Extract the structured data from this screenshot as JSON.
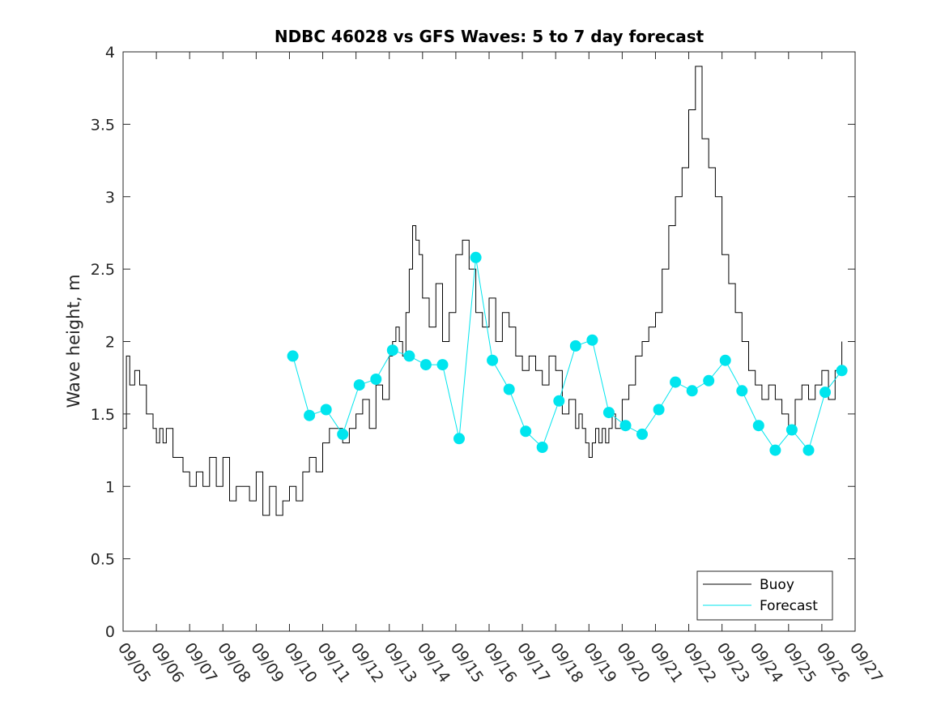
{
  "chart_data": {
    "type": "line",
    "title": "NDBC 46028 vs GFS Waves: 5 to 7 day forecast",
    "xlabel": "",
    "ylabel": "Wave height, m",
    "xlim": [
      0,
      22
    ],
    "ylim": [
      0,
      4
    ],
    "grid": false,
    "legend_position": "bottom-right",
    "x_tick_labels": [
      "09/05",
      "09/06",
      "09/07",
      "09/08",
      "09/09",
      "09/10",
      "09/11",
      "09/12",
      "09/13",
      "09/14",
      "09/15",
      "09/16",
      "09/17",
      "09/18",
      "09/19",
      "09/20",
      "09/21",
      "09/22",
      "09/23",
      "09/24",
      "09/25",
      "09/26",
      "09/27"
    ],
    "y_ticks": [
      0,
      0.5,
      1,
      1.5,
      2,
      2.5,
      3,
      3.5,
      4
    ],
    "y_tick_labels": [
      "0",
      "0.5",
      "1",
      "1.5",
      "2",
      "2.5",
      "3",
      "3.5",
      "4"
    ],
    "colors": {
      "buoy": "#000000",
      "forecast": "#00e5ee"
    },
    "series": [
      {
        "name": "Buoy",
        "x": [
          0,
          0.1,
          0.2,
          0.35,
          0.5,
          0.6,
          0.7,
          0.8,
          0.9,
          1.0,
          1.1,
          1.2,
          1.3,
          1.5,
          1.6,
          1.8,
          2.0,
          2.2,
          2.4,
          2.6,
          2.8,
          3.0,
          3.2,
          3.4,
          3.6,
          3.8,
          4.0,
          4.2,
          4.4,
          4.6,
          4.8,
          5.0,
          5.2,
          5.4,
          5.6,
          5.8,
          6.0,
          6.2,
          6.4,
          6.6,
          6.8,
          7.0,
          7.2,
          7.4,
          7.6,
          7.8,
          8.0,
          8.1,
          8.2,
          8.3,
          8.4,
          8.5,
          8.6,
          8.7,
          8.8,
          8.9,
          9.0,
          9.2,
          9.4,
          9.6,
          9.8,
          10.0,
          10.2,
          10.4,
          10.6,
          10.8,
          11.0,
          11.2,
          11.4,
          11.6,
          11.8,
          12.0,
          12.2,
          12.4,
          12.6,
          12.8,
          13.0,
          13.2,
          13.4,
          13.6,
          13.7,
          13.8,
          13.9,
          14.0,
          14.1,
          14.2,
          14.3,
          14.4,
          14.5,
          14.6,
          14.7,
          14.8,
          15.0,
          15.2,
          15.4,
          15.6,
          15.8,
          16.0,
          16.2,
          16.4,
          16.6,
          16.8,
          17.0,
          17.2,
          17.4,
          17.6,
          17.8,
          18.0,
          18.2,
          18.4,
          18.6,
          18.8,
          19.0,
          19.2,
          19.4,
          19.6,
          19.8,
          20.0,
          20.2,
          20.4,
          20.6,
          20.8,
          21.0,
          21.2,
          21.4,
          21.6
        ],
        "y": [
          1.4,
          1.9,
          1.7,
          1.8,
          1.7,
          1.7,
          1.5,
          1.5,
          1.4,
          1.3,
          1.4,
          1.3,
          1.4,
          1.2,
          1.2,
          1.1,
          1.0,
          1.1,
          1.0,
          1.2,
          1.0,
          1.2,
          0.9,
          1.0,
          1.0,
          0.9,
          1.1,
          0.8,
          1.0,
          0.8,
          0.9,
          1.0,
          0.9,
          1.1,
          1.2,
          1.1,
          1.3,
          1.4,
          1.4,
          1.3,
          1.4,
          1.5,
          1.6,
          1.4,
          1.7,
          1.6,
          1.9,
          2.0,
          2.1,
          2.0,
          1.9,
          2.2,
          2.5,
          2.8,
          2.7,
          2.6,
          2.3,
          2.1,
          2.4,
          2.0,
          2.2,
          2.6,
          2.7,
          2.5,
          2.2,
          2.1,
          2.3,
          2.0,
          2.2,
          2.1,
          1.9,
          1.8,
          1.9,
          1.8,
          1.7,
          1.9,
          1.8,
          1.5,
          1.6,
          1.4,
          1.5,
          1.4,
          1.3,
          1.2,
          1.3,
          1.4,
          1.3,
          1.4,
          1.3,
          1.4,
          1.5,
          1.4,
          1.6,
          1.7,
          1.9,
          2.0,
          2.1,
          2.2,
          2.5,
          2.8,
          3.0,
          3.2,
          3.6,
          3.9,
          3.4,
          3.2,
          3.0,
          2.6,
          2.4,
          2.2,
          2.0,
          1.8,
          1.7,
          1.6,
          1.7,
          1.6,
          1.5,
          1.4,
          1.6,
          1.7,
          1.6,
          1.7,
          1.8,
          1.6,
          1.8,
          2.0
        ]
      },
      {
        "name": "Forecast",
        "x": [
          5.1,
          5.6,
          6.1,
          6.6,
          7.1,
          7.6,
          8.1,
          8.6,
          9.1,
          9.6,
          10.1,
          10.6,
          11.1,
          11.6,
          12.1,
          12.6,
          13.1,
          13.6,
          14.1,
          14.6,
          15.1,
          15.6,
          16.1,
          16.6,
          17.1,
          17.6,
          18.1,
          18.6,
          19.1,
          19.6,
          20.1,
          20.6,
          21.1,
          21.6
        ],
        "y": [
          1.9,
          1.49,
          1.53,
          1.36,
          1.7,
          1.74,
          1.94,
          1.9,
          1.84,
          1.84,
          1.33,
          2.58,
          1.87,
          1.67,
          1.38,
          1.27,
          1.59,
          1.97,
          2.01,
          1.51,
          1.42,
          1.36,
          1.53,
          1.72,
          1.66,
          1.73,
          1.87,
          1.66,
          1.42,
          1.25,
          1.39,
          1.25,
          1.65,
          1.8
        ]
      }
    ],
    "legend": [
      {
        "label": "Buoy",
        "color": "#000000"
      },
      {
        "label": "Forecast",
        "color": "#00e5ee"
      }
    ]
  }
}
